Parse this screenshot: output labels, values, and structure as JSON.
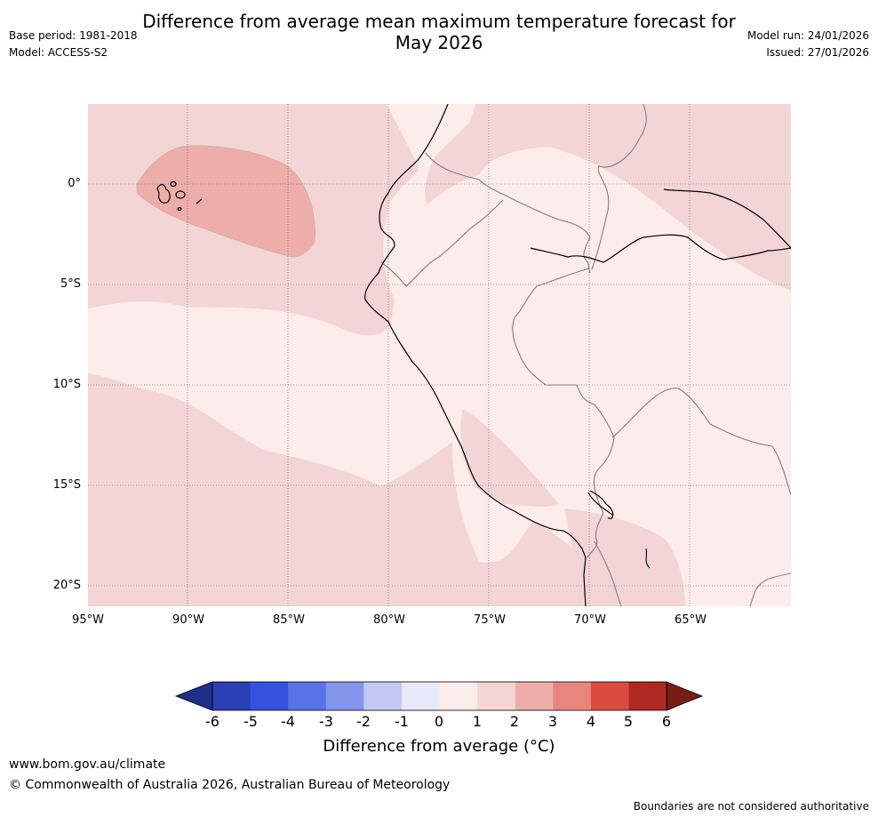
{
  "title": {
    "line1": "Difference from average mean maximum temperature forecast for",
    "line2": "May 2026"
  },
  "meta": {
    "base_period": "Base period: 1981-2018",
    "model": "Model: ACCESS-S2",
    "model_run": "Model run: 24/01/2026",
    "issued": "Issued: 27/01/2026"
  },
  "map": {
    "lat_labels": [
      "0°",
      "5°S",
      "10°S",
      "15°S",
      "20°S"
    ],
    "lon_labels": [
      "95°W",
      "90°W",
      "85°W",
      "80°W",
      "75°W",
      "70°W",
      "65°W"
    ]
  },
  "colorbar": {
    "title": "Difference from average (°C)",
    "ticks": [
      "-6",
      "-5",
      "-4",
      "-3",
      "-2",
      "-1",
      "0",
      "1",
      "2",
      "3",
      "4",
      "5",
      "6"
    ],
    "colors": [
      "#1f2f8a",
      "#2a3fb5",
      "#3451e0",
      "#5a72e8",
      "#8496ec",
      "#c3c9f5",
      "#e8eafb",
      "#fcecec",
      "#f4d5d5",
      "#edaeaa",
      "#e7867e",
      "#db4a40",
      "#ad2a22",
      "#7a1c16"
    ],
    "shades": {
      "range_0_1": "#fcecec",
      "range_1_2": "#f4d5d5",
      "range_2_3": "#edaeaa"
    }
  },
  "footer": {
    "website": "www.bom.gov.au/climate",
    "copyright": "© Commonwealth of Australia 2026, Australian Bureau of Meteorology",
    "disclaimer": "Boundaries are not considered authoritative"
  }
}
